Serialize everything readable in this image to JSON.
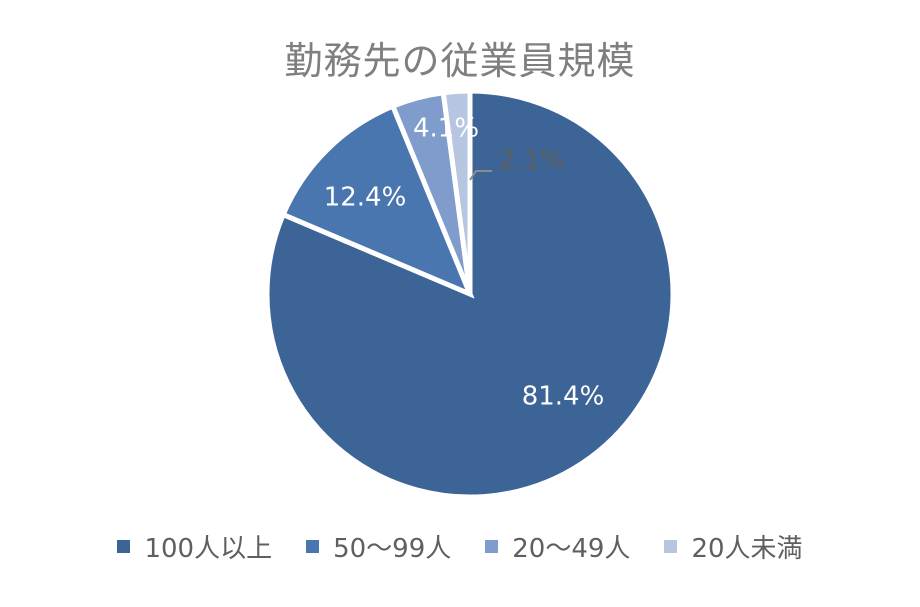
{
  "chart_data": {
    "type": "pie",
    "title": "勤務先の従業員規模",
    "categories": [
      "100人以上",
      "50〜99人",
      "20〜49人",
      "20人未満"
    ],
    "values": [
      81.4,
      12.4,
      4.1,
      2.1
    ],
    "value_labels": [
      "81.4%",
      "12.4%",
      "4.1%",
      "2.1%"
    ],
    "colors": [
      "#3c6496",
      "#4a76b0",
      "#7f9ccc",
      "#b6c6e0"
    ],
    "legend_position": "bottom",
    "start_angle": "12 o'clock",
    "direction": "clockwise"
  }
}
